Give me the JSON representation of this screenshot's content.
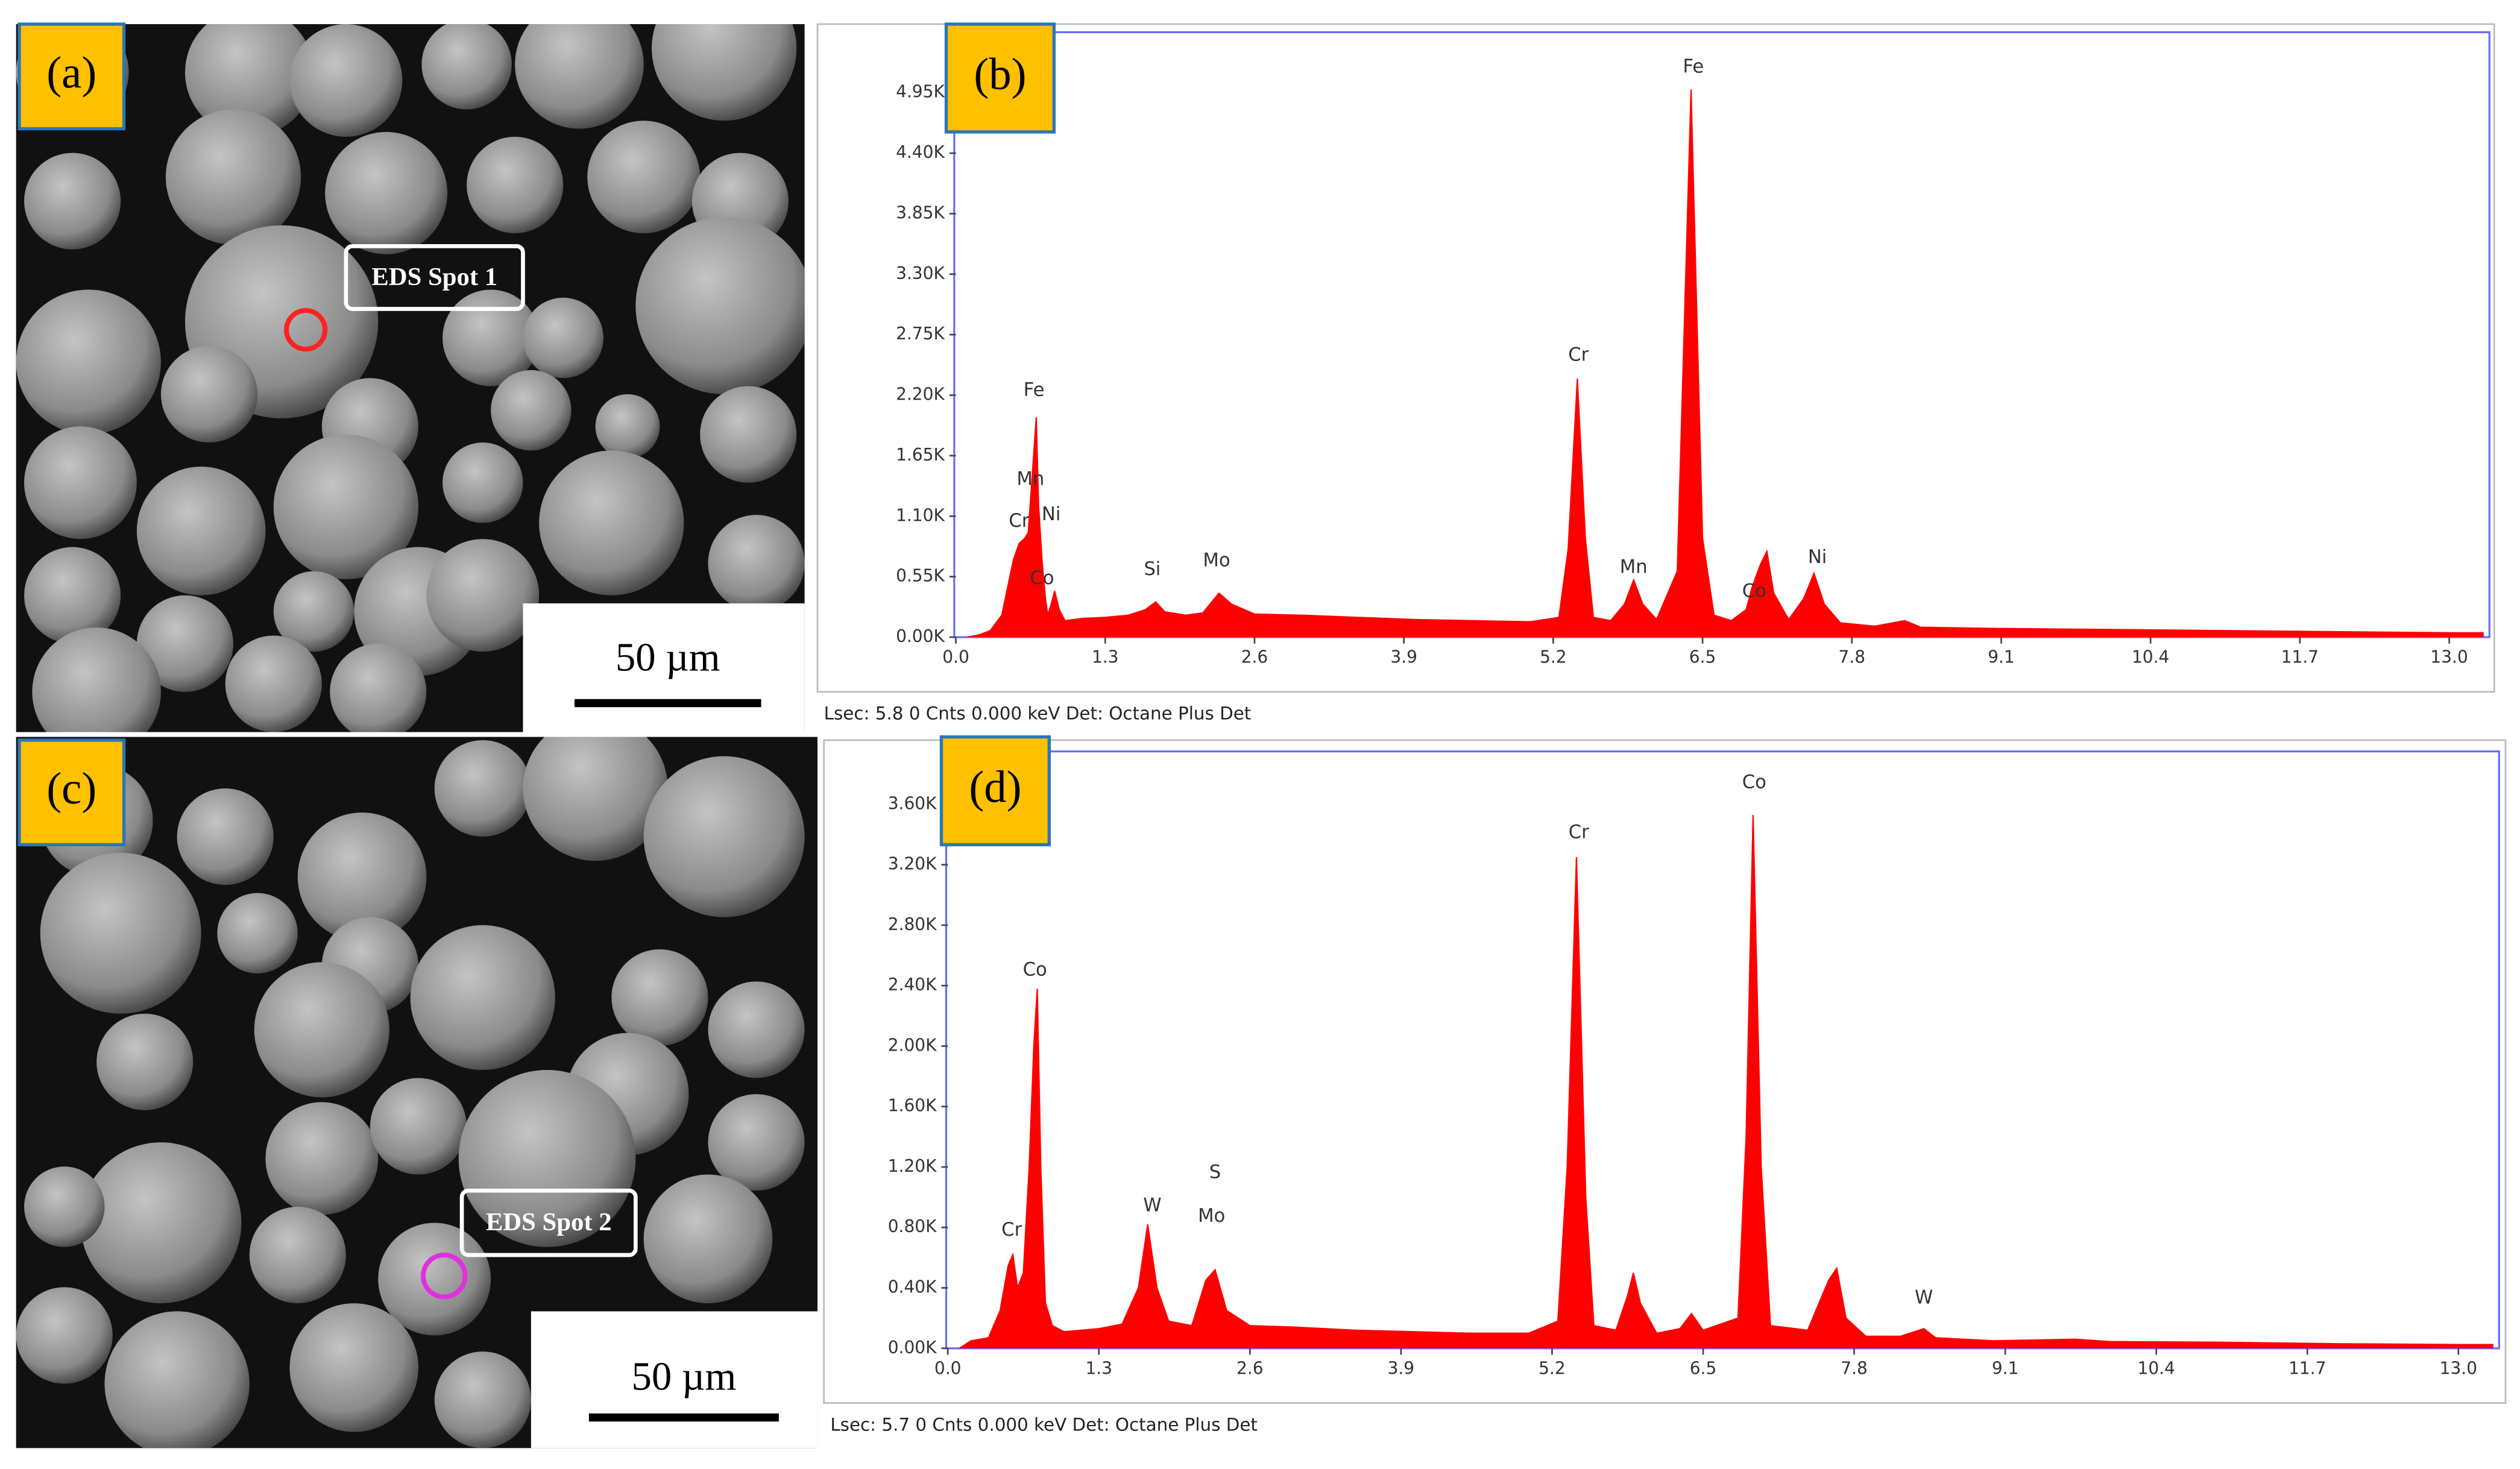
{
  "panels": [
    {
      "label": "(a)",
      "spot": "EDS Spot 1",
      "scale_bar": "50 µm"
    },
    {
      "label": "(c)",
      "spot": "EDS Spot 2",
      "scale_bar": "50 µm"
    }
  ],
  "chart_data": [
    {
      "type": "area",
      "label": "(b)",
      "color": "#ff0000",
      "footer": "Lsec: 5.8 0 Cnts  0.000 keV Det: Octane Plus Det",
      "xlim": [
        0,
        13.35
      ],
      "ylim": [
        0,
        5500
      ],
      "xticks": [
        {
          "value": 0,
          "label": "0.0"
        },
        1.3,
        2.6,
        3.9,
        5.2,
        6.5,
        7.8,
        9.1,
        10.4,
        11.7,
        {
          "value": 13,
          "label": "13.0"
        }
      ],
      "yticks": [
        {
          "value": 0,
          "label": "0.00K"
        },
        {
          "value": 550,
          "label": "0.55K"
        },
        {
          "value": 1100,
          "label": "1.10K"
        },
        {
          "value": 1650,
          "label": "1.65K"
        },
        {
          "value": 2200,
          "label": "2.20K"
        },
        {
          "value": 2750,
          "label": "2.75K"
        },
        {
          "value": 3300,
          "label": "3.30K"
        },
        {
          "value": 3850,
          "label": "3.85K"
        },
        {
          "value": 4400,
          "label": "4.40K"
        },
        {
          "value": 4950,
          "label": "4.95K"
        }
      ],
      "x": [
        0.1,
        0.2,
        0.3,
        0.4,
        0.45,
        0.5,
        0.55,
        0.6,
        0.63,
        0.66,
        0.7,
        0.72,
        0.75,
        0.78,
        0.8,
        0.83,
        0.86,
        0.9,
        0.95,
        1.1,
        1.3,
        1.5,
        1.65,
        1.74,
        1.82,
        2.0,
        2.15,
        2.29,
        2.4,
        2.6,
        3.0,
        3.5,
        4.0,
        4.5,
        5.0,
        5.25,
        5.33,
        5.41,
        5.48,
        5.55,
        5.7,
        5.82,
        5.9,
        5.98,
        6.1,
        6.28,
        6.4,
        6.5,
        6.6,
        6.75,
        6.88,
        6.93,
        7.0,
        7.06,
        7.12,
        7.25,
        7.38,
        7.47,
        7.56,
        7.7,
        8.0,
        8.26,
        8.4,
        9.0,
        10.0,
        11.0,
        12.0,
        13.0,
        13.3
      ],
      "values": [
        0,
        20,
        60,
        200,
        450,
        700,
        850,
        900,
        950,
        1400,
        2000,
        1200,
        700,
        350,
        200,
        300,
        420,
        250,
        150,
        170,
        180,
        200,
        250,
        320,
        230,
        200,
        220,
        400,
        300,
        210,
        200,
        180,
        160,
        150,
        140,
        180,
        800,
        2350,
        900,
        180,
        150,
        300,
        520,
        300,
        160,
        600,
        4980,
        900,
        200,
        150,
        250,
        450,
        650,
        780,
        400,
        160,
        350,
        580,
        300,
        130,
        100,
        150,
        90,
        80,
        70,
        60,
        50,
        40,
        40
      ],
      "annotations": [
        {
          "text": "Fe",
          "x": 0.68,
          "y": 2240
        },
        {
          "text": "Mn",
          "x": 0.65,
          "y": 1430
        },
        {
          "text": "Cr",
          "x": 0.55,
          "y": 1050
        },
        {
          "text": "Ni",
          "x": 0.83,
          "y": 1110
        },
        {
          "text": "Co",
          "x": 0.75,
          "y": 530
        },
        {
          "text": "Si",
          "x": 1.71,
          "y": 610
        },
        {
          "text": "Mo",
          "x": 2.27,
          "y": 690
        },
        {
          "text": "Cr",
          "x": 5.42,
          "y": 2560
        },
        {
          "text": "Fe",
          "x": 6.42,
          "y": 5180
        },
        {
          "text": "Mn",
          "x": 5.9,
          "y": 630
        },
        {
          "text": "Co",
          "x": 6.95,
          "y": 410
        },
        {
          "text": "Ni",
          "x": 7.5,
          "y": 720
        }
      ]
    },
    {
      "type": "area",
      "label": "(d)",
      "color": "#ff0000",
      "footer": "Lsec: 5.7 0 Cnts  0.000 keV Det: Octane Plus Det",
      "xlim": [
        0,
        13.35
      ],
      "ylim": [
        0,
        3950
      ],
      "xticks": [
        {
          "value": 0,
          "label": "0.0"
        },
        1.3,
        2.6,
        3.9,
        5.2,
        6.5,
        7.8,
        9.1,
        10.4,
        11.7,
        {
          "value": 13,
          "label": "13.0"
        }
      ],
      "yticks": [
        {
          "value": 0,
          "label": "0.00K"
        },
        {
          "value": 400,
          "label": "0.40K"
        },
        {
          "value": 800,
          "label": "0.80K"
        },
        {
          "value": 1200,
          "label": "1.20K"
        },
        {
          "value": 1600,
          "label": "1.60K"
        },
        {
          "value": 2000,
          "label": "2.00K"
        },
        {
          "value": 2400,
          "label": "2.40K"
        },
        {
          "value": 2800,
          "label": "2.80K"
        },
        {
          "value": 3200,
          "label": "3.20K"
        },
        {
          "value": 3600,
          "label": "3.60K"
        }
      ],
      "x": [
        0.1,
        0.2,
        0.35,
        0.45,
        0.52,
        0.56,
        0.6,
        0.65,
        0.7,
        0.74,
        0.77,
        0.8,
        0.84,
        0.9,
        1.0,
        1.3,
        1.5,
        1.64,
        1.72,
        1.8,
        1.9,
        2.1,
        2.22,
        2.3,
        2.4,
        2.6,
        3.0,
        3.5,
        4.0,
        4.5,
        5.0,
        5.25,
        5.33,
        5.41,
        5.49,
        5.56,
        5.75,
        5.85,
        5.9,
        5.96,
        6.1,
        6.3,
        6.4,
        6.5,
        6.8,
        6.87,
        6.93,
        7.0,
        7.08,
        7.4,
        7.58,
        7.65,
        7.73,
        7.9,
        8.2,
        8.4,
        8.5,
        9.0,
        9.7,
        10.0,
        11.0,
        12.0,
        13.0,
        13.3
      ],
      "values": [
        0,
        50,
        70,
        250,
        550,
        620,
        400,
        500,
        1200,
        2000,
        2380,
        1200,
        300,
        150,
        110,
        130,
        160,
        400,
        820,
        400,
        180,
        150,
        450,
        520,
        250,
        150,
        140,
        120,
        110,
        100,
        100,
        180,
        1200,
        3250,
        1000,
        150,
        120,
        350,
        500,
        300,
        100,
        130,
        230,
        120,
        200,
        1400,
        3530,
        1200,
        150,
        120,
        450,
        530,
        200,
        80,
        80,
        130,
        70,
        50,
        60,
        45,
        40,
        30,
        25,
        25
      ],
      "annotations": [
        {
          "text": "Co",
          "x": 0.75,
          "y": 2500
        },
        {
          "text": "Cr",
          "x": 0.55,
          "y": 780
        },
        {
          "text": "W",
          "x": 1.76,
          "y": 940
        },
        {
          "text": "S",
          "x": 2.3,
          "y": 1160
        },
        {
          "text": "Mo",
          "x": 2.27,
          "y": 870
        },
        {
          "text": "Cr",
          "x": 5.43,
          "y": 3410
        },
        {
          "text": "Co",
          "x": 6.94,
          "y": 3740
        },
        {
          "text": "W",
          "x": 8.4,
          "y": 330
        }
      ]
    }
  ]
}
